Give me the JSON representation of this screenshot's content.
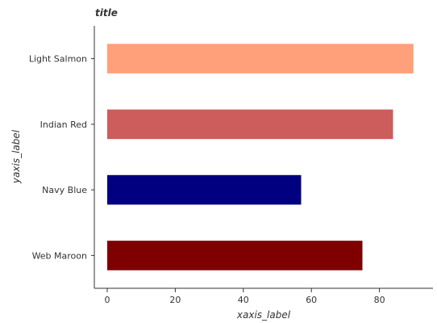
{
  "chart_data": {
    "type": "bar",
    "orientation": "horizontal",
    "title": "title",
    "xlabel": "xaxis_label",
    "ylabel": "yaxis_label",
    "categories": [
      "Web Maroon",
      "Navy Blue",
      "Indian Red",
      "Light Salmon"
    ],
    "values": [
      75,
      57,
      84,
      90
    ],
    "colors": [
      "#7f0000",
      "#000080",
      "#cd5c5c",
      "#ffa07a"
    ],
    "xlim": [
      0,
      95
    ],
    "xticks": [
      0,
      20,
      40,
      60,
      80
    ],
    "xtick_labels": [
      "0",
      "20",
      "40",
      "60",
      "80"
    ],
    "grid": false,
    "legend": "none"
  }
}
